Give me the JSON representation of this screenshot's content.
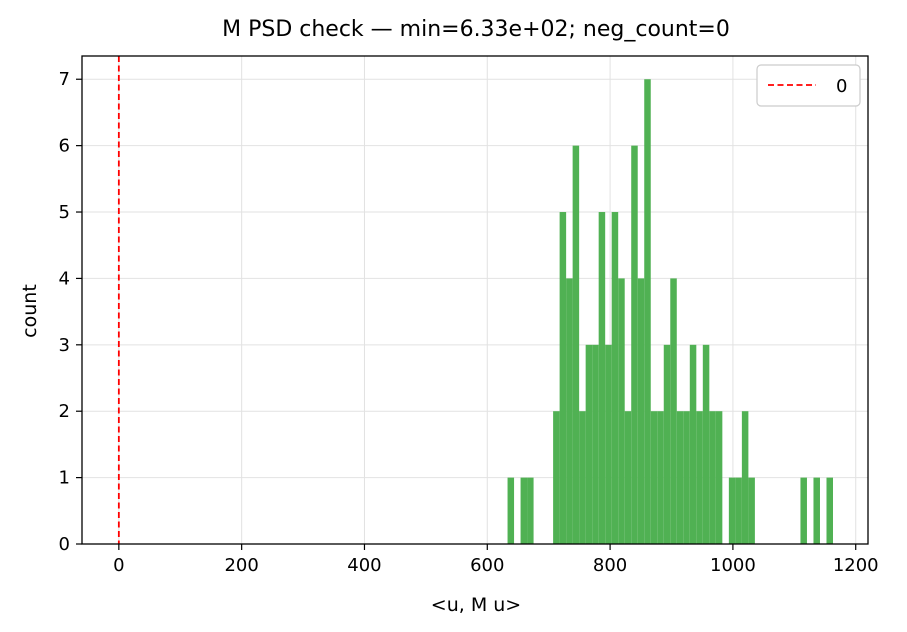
{
  "chart_data": {
    "type": "bar",
    "title": "M PSD check — min=6.33e+02; neg_count=0",
    "xlabel": "<u, M u>",
    "ylabel": "count",
    "xlim": [
      -60,
      1220
    ],
    "ylim": [
      0,
      7.35
    ],
    "x_ticks": [
      0,
      200,
      400,
      600,
      800,
      1000,
      1200
    ],
    "y_ticks": [
      0,
      1,
      2,
      3,
      4,
      5,
      6,
      7
    ],
    "x_tick_labels": [
      "0",
      "200",
      "400",
      "600",
      "800",
      "1000",
      "1200"
    ],
    "y_tick_labels": [
      "0",
      "1",
      "2",
      "3",
      "4",
      "5",
      "6",
      "7"
    ],
    "grid": true,
    "legend": {
      "position": "top-right",
      "entries": [
        {
          "label": "0",
          "style": "dashed-line",
          "color": "#ff0000"
        }
      ]
    },
    "reference_line": {
      "x": 0,
      "color": "#ff0000",
      "style": "dashed",
      "label": "0"
    },
    "bar_color": "#4caf50",
    "bin_width": 10.6,
    "bins": [
      {
        "x0": 633,
        "count": 1
      },
      {
        "x0": 654.2,
        "count": 1
      },
      {
        "x0": 664.8,
        "count": 1
      },
      {
        "x0": 707.2,
        "count": 2
      },
      {
        "x0": 717.8,
        "count": 5
      },
      {
        "x0": 728.4,
        "count": 4
      },
      {
        "x0": 739,
        "count": 6
      },
      {
        "x0": 749.6,
        "count": 2
      },
      {
        "x0": 760.2,
        "count": 3
      },
      {
        "x0": 770.8,
        "count": 3
      },
      {
        "x0": 781.4,
        "count": 5
      },
      {
        "x0": 792,
        "count": 3
      },
      {
        "x0": 802.6,
        "count": 5
      },
      {
        "x0": 813.2,
        "count": 4
      },
      {
        "x0": 823.8,
        "count": 2
      },
      {
        "x0": 834.4,
        "count": 6
      },
      {
        "x0": 845,
        "count": 4
      },
      {
        "x0": 855.6,
        "count": 7
      },
      {
        "x0": 866.2,
        "count": 2
      },
      {
        "x0": 876.8,
        "count": 2
      },
      {
        "x0": 887.4,
        "count": 3
      },
      {
        "x0": 898,
        "count": 4
      },
      {
        "x0": 908.6,
        "count": 2
      },
      {
        "x0": 919.2,
        "count": 2
      },
      {
        "x0": 929.8,
        "count": 3
      },
      {
        "x0": 940.4,
        "count": 2
      },
      {
        "x0": 951,
        "count": 3
      },
      {
        "x0": 961.6,
        "count": 2
      },
      {
        "x0": 972.2,
        "count": 2
      },
      {
        "x0": 993.4,
        "count": 1
      },
      {
        "x0": 1004,
        "count": 1
      },
      {
        "x0": 1014.6,
        "count": 2
      },
      {
        "x0": 1025.2,
        "count": 1
      },
      {
        "x0": 1110,
        "count": 1
      },
      {
        "x0": 1131.2,
        "count": 1
      },
      {
        "x0": 1152.4,
        "count": 1
      }
    ]
  }
}
